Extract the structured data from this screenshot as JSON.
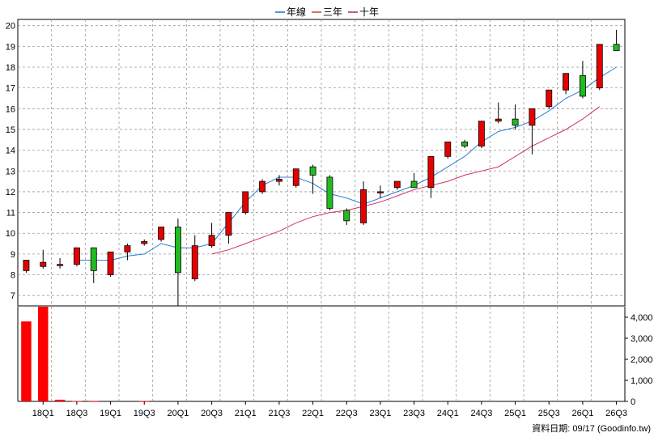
{
  "legend": [
    {
      "label": "年線",
      "color": "#1a6fd8"
    },
    {
      "label": "三年",
      "color": "#d23a3a"
    },
    {
      "label": "十年",
      "color": "#b0206a"
    }
  ],
  "source_text": "資料日期: 09/17  (Goodinfo.tw)",
  "colors": {
    "up": "#e60000",
    "down": "#22bb22",
    "volume": "#ff0000",
    "grid": "#9a9a9a",
    "line_year": "#2a7fd4",
    "line_3y": "#d0306a"
  },
  "chart_data": {
    "type": "candlestick",
    "price_axis": {
      "ticks": [
        7,
        8,
        9,
        10,
        11,
        12,
        13,
        14,
        15,
        16,
        17,
        18,
        19,
        20
      ],
      "range": [
        6.5,
        20.3
      ]
    },
    "volume_axis": {
      "ticks": [
        "0",
        "1,000",
        "2,000",
        "3,000",
        "4,000"
      ],
      "tick_values": [
        0,
        1000,
        2000,
        3000,
        4000
      ],
      "range": [
        0,
        4500
      ]
    },
    "x_labels": [
      "18Q1",
      "18Q3",
      "19Q1",
      "19Q3",
      "20Q1",
      "20Q3",
      "21Q1",
      "21Q3",
      "22Q1",
      "22Q3",
      "23Q1",
      "23Q3",
      "24Q1",
      "24Q3",
      "25Q1",
      "25Q3",
      "26Q1",
      "26Q3"
    ],
    "candles": [
      {
        "o": 8.2,
        "h": 8.7,
        "l": 8.1,
        "c": 8.7
      },
      {
        "o": 8.4,
        "h": 9.2,
        "l": 8.3,
        "c": 8.6
      },
      {
        "o": 8.5,
        "h": 8.8,
        "l": 8.3,
        "c": 8.5
      },
      {
        "o": 8.5,
        "h": 9.3,
        "l": 8.4,
        "c": 9.3
      },
      {
        "o": 9.3,
        "h": 9.3,
        "l": 7.6,
        "c": 8.2
      },
      {
        "o": 8.0,
        "h": 9.1,
        "l": 7.9,
        "c": 9.1
      },
      {
        "o": 9.1,
        "h": 9.5,
        "l": 8.7,
        "c": 9.4
      },
      {
        "o": 9.5,
        "h": 9.7,
        "l": 9.4,
        "c": 9.6
      },
      {
        "o": 9.7,
        "h": 10.3,
        "l": 9.6,
        "c": 10.3
      },
      {
        "o": 10.3,
        "h": 10.7,
        "l": 6.5,
        "c": 8.1
      },
      {
        "o": 7.8,
        "h": 9.9,
        "l": 7.7,
        "c": 9.4
      },
      {
        "o": 9.4,
        "h": 10.5,
        "l": 9.3,
        "c": 9.9
      },
      {
        "o": 9.9,
        "h": 11.0,
        "l": 9.5,
        "c": 11.0
      },
      {
        "o": 11.0,
        "h": 12.0,
        "l": 10.9,
        "c": 12.0
      },
      {
        "o": 12.0,
        "h": 12.6,
        "l": 11.9,
        "c": 12.5
      },
      {
        "o": 12.5,
        "h": 12.8,
        "l": 12.3,
        "c": 12.6
      },
      {
        "o": 12.3,
        "h": 13.1,
        "l": 12.2,
        "c": 13.1
      },
      {
        "o": 13.2,
        "h": 13.3,
        "l": 11.9,
        "c": 12.8
      },
      {
        "o": 12.7,
        "h": 12.8,
        "l": 11.1,
        "c": 11.2
      },
      {
        "o": 11.1,
        "h": 11.2,
        "l": 10.4,
        "c": 10.6
      },
      {
        "o": 10.5,
        "h": 12.5,
        "l": 10.4,
        "c": 12.1
      },
      {
        "o": 12.0,
        "h": 12.3,
        "l": 11.7,
        "c": 12.0
      },
      {
        "o": 12.2,
        "h": 12.5,
        "l": 12.1,
        "c": 12.5
      },
      {
        "o": 12.5,
        "h": 12.9,
        "l": 12.2,
        "c": 12.2
      },
      {
        "o": 12.2,
        "h": 13.7,
        "l": 11.7,
        "c": 13.7
      },
      {
        "o": 13.7,
        "h": 14.4,
        "l": 13.6,
        "c": 14.4
      },
      {
        "o": 14.4,
        "h": 14.5,
        "l": 14.1,
        "c": 14.2
      },
      {
        "o": 14.2,
        "h": 15.4,
        "l": 14.1,
        "c": 15.4
      },
      {
        "o": 15.4,
        "h": 16.3,
        "l": 15.3,
        "c": 15.5
      },
      {
        "o": 15.5,
        "h": 16.2,
        "l": 15.0,
        "c": 15.2
      },
      {
        "o": 15.2,
        "h": 16.0,
        "l": 13.8,
        "c": 16.0
      },
      {
        "o": 16.1,
        "h": 16.9,
        "l": 16.0,
        "c": 16.9
      },
      {
        "o": 16.9,
        "h": 17.7,
        "l": 16.7,
        "c": 17.7
      },
      {
        "o": 17.6,
        "h": 18.3,
        "l": 16.5,
        "c": 16.6
      },
      {
        "o": 17.0,
        "h": 19.1,
        "l": 16.9,
        "c": 19.1
      },
      {
        "o": 19.1,
        "h": 19.8,
        "l": 18.8,
        "c": 18.8
      }
    ],
    "series": [
      {
        "name": "年線",
        "start_index": 3,
        "values": [
          8.7,
          8.7,
          8.7,
          8.9,
          9.0,
          9.5,
          9.3,
          9.3,
          9.5,
          10.5,
          11.5,
          12.3,
          12.7,
          12.7,
          12.4,
          11.9,
          11.7,
          11.4,
          11.7,
          12.0,
          12.3,
          12.7,
          13.2,
          13.7,
          14.4,
          14.9,
          15.1,
          15.4,
          15.9,
          16.5,
          16.9,
          17.5,
          18.0
        ]
      },
      {
        "name": "三年",
        "start_index": 11,
        "values": [
          9.0,
          9.2,
          9.5,
          9.8,
          10.1,
          10.5,
          10.8,
          11.0,
          11.1,
          11.3,
          11.5,
          11.8,
          12.1,
          12.3,
          12.5,
          12.8,
          13.0,
          13.2,
          13.7,
          14.2,
          14.6,
          15.0,
          15.5,
          16.1
        ]
      }
    ],
    "volume": [
      3800,
      4500,
      80,
      20,
      15,
      0,
      0,
      15,
      0,
      0,
      0,
      0,
      0,
      0,
      0,
      0,
      0,
      0,
      0,
      0,
      0,
      0,
      0,
      0,
      0,
      0,
      0,
      0,
      0,
      0,
      0,
      0,
      0,
      0,
      0,
      0
    ]
  }
}
